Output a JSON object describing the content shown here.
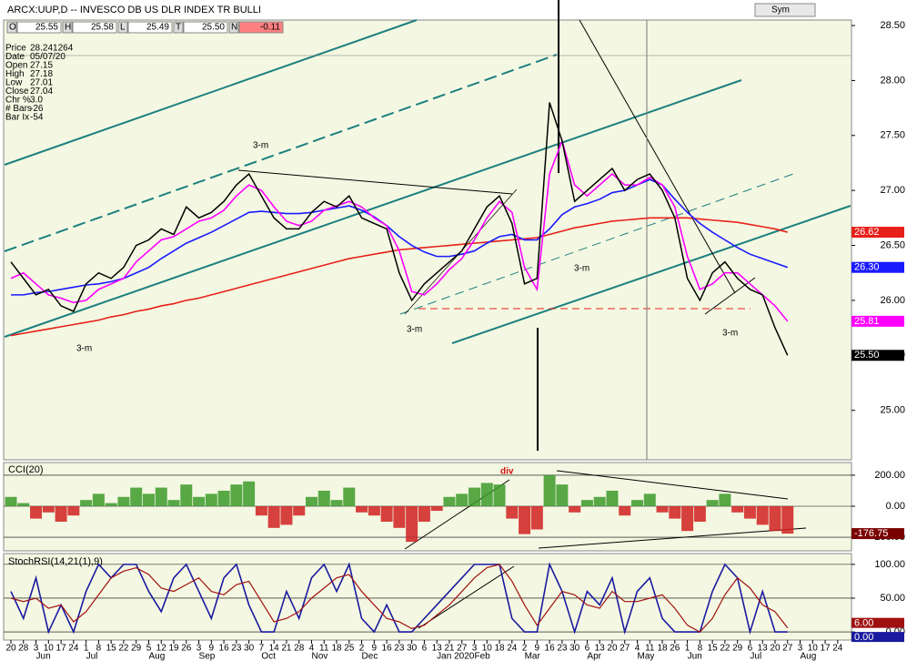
{
  "chart_data": {
    "type": "line",
    "title": "ARCX:UUP,D -- INVESCO DB US DLR INDEX TR BULLI",
    "buttons": [
      "Sym"
    ],
    "quote": [
      {
        "label": "O",
        "value": "25.55"
      },
      {
        "label": "H",
        "value": "25.58"
      },
      {
        "label": "L",
        "value": "25.49"
      },
      {
        "label": "T",
        "value": "25.50"
      },
      {
        "label": "N",
        "value": "-0.11"
      }
    ],
    "info": [
      [
        "Price",
        "28.241264"
      ],
      [
        "Date",
        "05/07/20"
      ],
      [
        "Open",
        "27.15"
      ],
      [
        "High",
        "27.18"
      ],
      [
        "Low",
        "27.01"
      ],
      [
        "Close",
        "27.04"
      ],
      [
        "Chr %",
        "3.0"
      ],
      [
        "# Bars",
        "-26"
      ],
      [
        "Bar Ix",
        "-54"
      ]
    ],
    "annotations": [
      "3-m",
      "3-m",
      "3-m",
      "3-m",
      "3-m",
      "div"
    ],
    "categories": [
      "20",
      "28",
      "3",
      "10",
      "17",
      "24",
      "1",
      "8",
      "15",
      "22",
      "29",
      "5",
      "12",
      "19",
      "26",
      "3",
      "9",
      "16",
      "23",
      "30",
      "7",
      "14",
      "21",
      "28",
      "4",
      "11",
      "18",
      "25",
      "2",
      "9",
      "16",
      "23",
      "30",
      "6",
      "13",
      "21",
      "27",
      "3",
      "10",
      "18",
      "24",
      "2",
      "9",
      "16",
      "23",
      "30",
      "6",
      "13",
      "20",
      "27",
      "4",
      "11",
      "18",
      "26",
      "1",
      "8",
      "15",
      "22",
      "29",
      "6",
      "13",
      "20",
      "27",
      "3",
      "10",
      "17",
      "24"
    ],
    "months": [
      null,
      null,
      "Jun",
      null,
      null,
      null,
      "Jul",
      null,
      null,
      null,
      null,
      "Aug",
      null,
      null,
      null,
      "Sep",
      null,
      null,
      null,
      null,
      "Oct",
      null,
      null,
      null,
      "Nov",
      null,
      null,
      null,
      "Dec",
      null,
      null,
      null,
      null,
      null,
      "Jan 2020",
      null,
      null,
      "Feb",
      null,
      null,
      null,
      "Mar",
      null,
      null,
      null,
      null,
      "Apr",
      null,
      null,
      null,
      "May",
      null,
      null,
      null,
      "Jun",
      null,
      null,
      null,
      null,
      "Jul",
      null,
      null,
      null,
      "Aug",
      null,
      null,
      null
    ],
    "ylim": [
      24.55,
      28.55
    ],
    "yticks": [
      {
        "value": 25,
        "label": "25.00"
      },
      {
        "value": 25.5,
        "label": "25.50"
      },
      {
        "value": 26,
        "label": "26.00"
      },
      {
        "value": 26.5,
        "label": "26.50"
      },
      {
        "value": 27,
        "label": "27.00"
      },
      {
        "value": 27.5,
        "label": "27.50"
      },
      {
        "value": 28,
        "label": "28.00"
      },
      {
        "value": 28.5,
        "label": "28.50"
      }
    ],
    "series": [
      {
        "color": "#000000",
        "last_value_label": "25.50",
        "values": [
          26.35,
          26.2,
          26.05,
          26.1,
          25.95,
          25.9,
          26.15,
          26.25,
          26.2,
          26.3,
          26.5,
          26.55,
          26.65,
          26.6,
          26.85,
          26.75,
          26.8,
          26.9,
          27.05,
          27.15,
          26.95,
          26.75,
          26.65,
          26.65,
          26.8,
          26.9,
          26.85,
          26.95,
          26.75,
          26.7,
          26.65,
          26.25,
          26.0,
          26.15,
          26.25,
          26.35,
          26.45,
          26.65,
          26.85,
          26.95,
          26.7,
          26.15,
          26.2,
          27.8,
          27.45,
          26.9,
          27.0,
          27.1,
          27.2,
          27.0,
          27.1,
          27.15,
          27.0,
          26.75,
          26.2,
          26.0,
          26.25,
          26.35,
          26.2,
          26.1,
          26.05,
          25.75,
          25.5,
          null,
          null,
          null,
          null
        ]
      },
      {
        "color": "#ff00ff",
        "last_value_label": "25.81",
        "values": [
          26.2,
          26.25,
          26.15,
          26.05,
          26.02,
          25.98,
          26.0,
          26.1,
          26.15,
          26.2,
          26.35,
          26.45,
          26.55,
          26.58,
          26.65,
          26.72,
          26.75,
          26.82,
          26.95,
          27.05,
          27.0,
          26.85,
          26.72,
          26.68,
          26.72,
          26.82,
          26.86,
          26.9,
          26.85,
          26.75,
          26.68,
          26.45,
          26.08,
          26.05,
          26.15,
          26.28,
          26.38,
          26.55,
          26.75,
          26.9,
          26.8,
          26.3,
          26.1,
          27.15,
          27.45,
          27.05,
          26.95,
          27.05,
          27.15,
          27.05,
          27.05,
          27.12,
          27.05,
          26.85,
          26.4,
          26.1,
          26.15,
          26.25,
          26.25,
          26.15,
          26.05,
          25.95,
          25.81,
          null,
          null,
          null,
          null
        ]
      },
      {
        "color": "#1a1aff",
        "last_value_label": "26.30",
        "values": [
          26.05,
          26.05,
          26.07,
          26.08,
          26.1,
          26.12,
          26.14,
          26.15,
          26.17,
          26.2,
          26.25,
          26.3,
          26.38,
          26.45,
          26.52,
          26.57,
          26.62,
          26.68,
          26.74,
          26.8,
          26.81,
          26.8,
          26.79,
          26.79,
          26.8,
          26.82,
          26.84,
          26.86,
          26.82,
          26.76,
          26.68,
          26.58,
          26.5,
          26.44,
          26.4,
          26.4,
          26.42,
          26.45,
          26.52,
          26.58,
          26.6,
          26.55,
          26.55,
          26.65,
          26.78,
          26.85,
          26.88,
          26.92,
          26.98,
          27.0,
          27.05,
          27.1,
          27.05,
          26.92,
          26.8,
          26.7,
          26.62,
          26.55,
          26.48,
          26.42,
          26.38,
          26.34,
          26.3,
          null,
          null,
          null,
          null
        ]
      },
      {
        "color": "#e8201a",
        "last_value_label": "26.62",
        "values": [
          25.68,
          25.7,
          25.72,
          25.74,
          25.76,
          25.78,
          25.8,
          25.82,
          25.85,
          25.87,
          25.9,
          25.92,
          25.95,
          25.97,
          26.0,
          26.02,
          26.05,
          26.08,
          26.11,
          26.14,
          26.17,
          26.2,
          26.23,
          26.26,
          26.29,
          26.32,
          26.35,
          26.38,
          26.4,
          26.42,
          26.44,
          26.46,
          26.47,
          26.48,
          26.49,
          26.5,
          26.51,
          26.52,
          26.53,
          26.54,
          26.55,
          26.56,
          26.57,
          26.6,
          26.63,
          26.66,
          26.68,
          26.7,
          26.72,
          26.73,
          26.74,
          26.75,
          26.75,
          26.75,
          26.75,
          26.74,
          26.73,
          26.72,
          26.71,
          26.69,
          26.67,
          26.65,
          26.62,
          null,
          null,
          null,
          null
        ]
      }
    ],
    "cci": {
      "title": "CCI(20)",
      "ylim": [
        -288,
        282
      ],
      "yticks": [
        {
          "value": 200,
          "label": "200.00"
        },
        {
          "value": 0,
          "label": "0.00"
        },
        {
          "value": -200,
          "label": "-200.00"
        }
      ],
      "last_value_label": "-176.75",
      "values": [
        60,
        20,
        -80,
        -40,
        -100,
        -60,
        40,
        80,
        20,
        60,
        120,
        80,
        120,
        40,
        140,
        60,
        80,
        100,
        140,
        160,
        -60,
        -140,
        -120,
        -60,
        60,
        100,
        40,
        120,
        -40,
        -60,
        -100,
        -140,
        -230,
        -100,
        -30,
        60,
        80,
        120,
        150,
        140,
        -80,
        -180,
        -150,
        200,
        140,
        -40,
        40,
        60,
        100,
        -60,
        40,
        80,
        -40,
        -80,
        -160,
        -100,
        40,
        80,
        -40,
        -80,
        -120,
        -160,
        -176.75,
        null,
        null,
        null,
        null
      ]
    },
    "stoch": {
      "title": "StochRSI(14,21(1),9)",
      "ylim": [
        -12,
        116
      ],
      "yticks": [
        {
          "value": 100,
          "label": "100.00"
        },
        {
          "value": 50,
          "label": "50.00"
        },
        {
          "value": 0,
          "label": "0.00"
        }
      ],
      "series": [
        {
          "color": "#1a1aa0",
          "last_value_label": "0.00",
          "values": [
            60,
            20,
            80,
            0,
            40,
            0,
            60,
            100,
            80,
            100,
            100,
            60,
            30,
            80,
            100,
            60,
            20,
            80,
            100,
            40,
            0,
            0,
            60,
            20,
            80,
            100,
            60,
            100,
            20,
            0,
            40,
            0,
            0,
            20,
            40,
            60,
            80,
            100,
            100,
            100,
            20,
            0,
            0,
            100,
            60,
            0,
            60,
            40,
            80,
            0,
            60,
            80,
            20,
            0,
            0,
            0,
            60,
            100,
            80,
            0,
            60,
            0,
            0,
            null,
            null,
            null,
            null
          ]
        },
        {
          "color": "#a01010",
          "last_value_label": "6.00",
          "values": [
            50,
            45,
            50,
            35,
            40,
            15,
            30,
            55,
            80,
            90,
            95,
            85,
            65,
            60,
            70,
            80,
            60,
            55,
            70,
            75,
            45,
            15,
            20,
            30,
            50,
            65,
            80,
            85,
            60,
            40,
            20,
            15,
            5,
            10,
            25,
            40,
            60,
            80,
            95,
            100,
            75,
            40,
            10,
            35,
            60,
            55,
            40,
            35,
            60,
            45,
            45,
            50,
            55,
            35,
            10,
            0,
            20,
            55,
            80,
            65,
            40,
            30,
            6,
            null,
            null,
            null,
            null
          ]
        }
      ]
    }
  }
}
